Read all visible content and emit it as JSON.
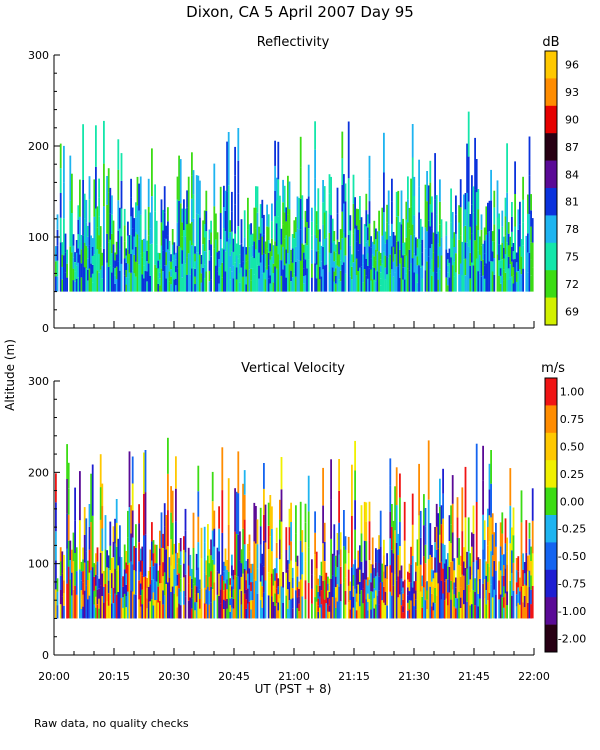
{
  "figure": {
    "title": "Dixon, CA   5 April 2007   Day   95",
    "ylabel": "Altitude  (m)",
    "xlabel": "UT   (PST + 8)",
    "footnote": "Raw data, no quality checks"
  },
  "chart_data": [
    {
      "type": "heatmap",
      "panel": "reflectivity",
      "title": "Reflectivity",
      "xlabel": "UT   (PST + 8)",
      "ylabel": "Altitude  (m)",
      "xlim": [
        "20:00",
        "22:00"
      ],
      "ylim": [
        0,
        300
      ],
      "x_ticks": [
        "20:00",
        "20:15",
        "20:30",
        "20:45",
        "21:00",
        "21:15",
        "21:30",
        "21:45",
        "22:00"
      ],
      "y_ticks": [
        0,
        100,
        200,
        300
      ],
      "data_altitude_range": [
        40,
        240
      ],
      "colorbar": {
        "unit": "dB",
        "labels": [
          "96",
          "93",
          "90",
          "87",
          "84",
          "81",
          "78",
          "75",
          "72",
          "69"
        ],
        "colors": [
          "#ffc800",
          "#ff8c00",
          "#e60000",
          "#280014",
          "#5a0a96",
          "#0a32dc",
          "#1eb4f0",
          "#14e6aa",
          "#3cdc14",
          "#d2f000"
        ]
      },
      "grid": false
    },
    {
      "type": "heatmap",
      "panel": "vertical_velocity",
      "title": "Vertical Velocity",
      "xlabel": "UT   (PST + 8)",
      "ylabel": "Altitude  (m)",
      "xlim": [
        "20:00",
        "22:00"
      ],
      "ylim": [
        0,
        300
      ],
      "x_ticks": [
        "20:00",
        "20:15",
        "20:30",
        "20:45",
        "21:00",
        "21:15",
        "21:30",
        "21:45",
        "22:00"
      ],
      "y_ticks": [
        0,
        100,
        200,
        300
      ],
      "data_altitude_range": [
        40,
        240
      ],
      "colorbar": {
        "unit": "m/s",
        "labels": [
          "1.00",
          "0.75",
          "0.50",
          "0.25",
          "0.00",
          "-0.25",
          "-0.50",
          "-0.75",
          "-1.00",
          "-2.00"
        ],
        "colors": [
          "#f01414",
          "#ff8c00",
          "#ffc800",
          "#f0f000",
          "#3cdc14",
          "#1eb4f0",
          "#1464f0",
          "#1e1ed2",
          "#5a0a96",
          "#280014"
        ]
      },
      "grid": false
    }
  ]
}
